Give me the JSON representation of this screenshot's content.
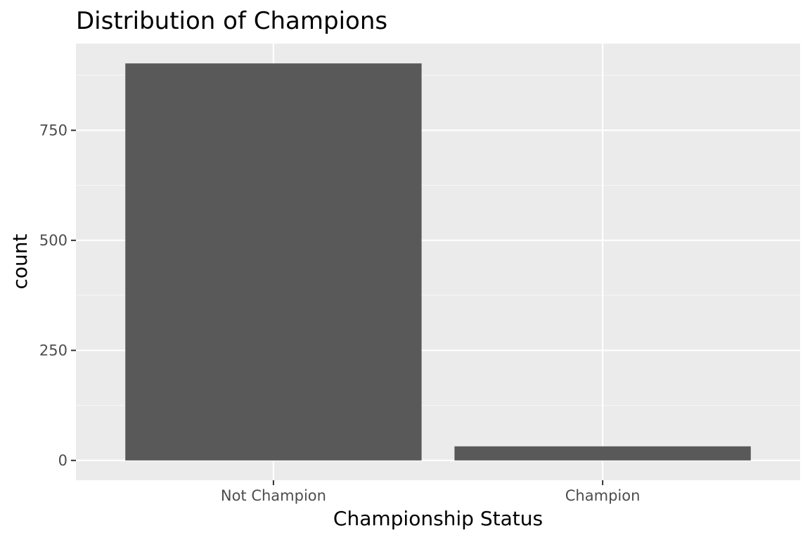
{
  "chart_data": {
    "type": "bar",
    "title": "Distribution of Champions",
    "xlabel": "Championship Status",
    "ylabel": "count",
    "categories": [
      "Not Champion",
      "Champion"
    ],
    "values": [
      902,
      32
    ],
    "ylim": [
      -45,
      947
    ],
    "yticks": [
      0,
      250,
      500,
      750
    ],
    "ytick_labels": [
      "0",
      "250",
      "500",
      "750"
    ],
    "grid": true,
    "legend": "none",
    "colors": {
      "bar": "#595959",
      "panel_background": "#ebebeb",
      "grid_major": "#ffffff",
      "grid_minor": "#f5f5f5",
      "tick_text": "#4d4d4d",
      "tick_mark": "#333333"
    }
  }
}
